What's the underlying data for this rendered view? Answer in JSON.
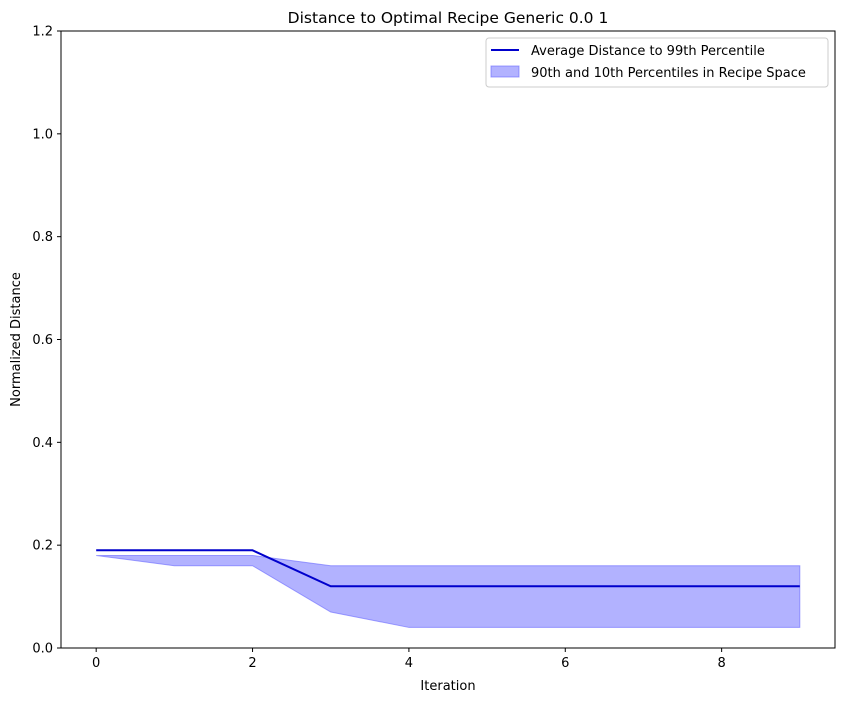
{
  "chart_data": {
    "type": "line",
    "title": "Distance to Optimal Recipe Generic 0.0 1",
    "xlabel": "Iteration",
    "ylabel": "Normalized Distance",
    "xlim": [
      -0.45,
      9.45
    ],
    "ylim": [
      0,
      1.2
    ],
    "xticks": [
      0,
      2,
      4,
      6,
      8
    ],
    "yticks": [
      0.0,
      0.2,
      0.4,
      0.6,
      0.8,
      1.0,
      1.2
    ],
    "xtick_labels": [
      "0",
      "2",
      "4",
      "6",
      "8"
    ],
    "ytick_labels": [
      "0.0",
      "0.2",
      "0.4",
      "0.6",
      "0.8",
      "1.0",
      "1.2"
    ],
    "x": [
      0,
      1,
      2,
      3,
      4,
      5,
      6,
      7,
      8,
      9
    ],
    "series": [
      {
        "name": "Average Distance to 99th Percentile",
        "kind": "line",
        "color": "#0000cc",
        "values": [
          0.19,
          0.19,
          0.19,
          0.12,
          0.12,
          0.12,
          0.12,
          0.12,
          0.12,
          0.12
        ]
      },
      {
        "name": "90th and 10th Percentiles in Recipe Space",
        "kind": "band",
        "color": "#6666ff",
        "upper": [
          0.18,
          0.18,
          0.18,
          0.16,
          0.16,
          0.16,
          0.16,
          0.16,
          0.16,
          0.16
        ],
        "lower": [
          0.18,
          0.16,
          0.16,
          0.07,
          0.04,
          0.04,
          0.04,
          0.04,
          0.04,
          0.04
        ]
      }
    ],
    "legend_position": "top-right",
    "grid": false
  }
}
